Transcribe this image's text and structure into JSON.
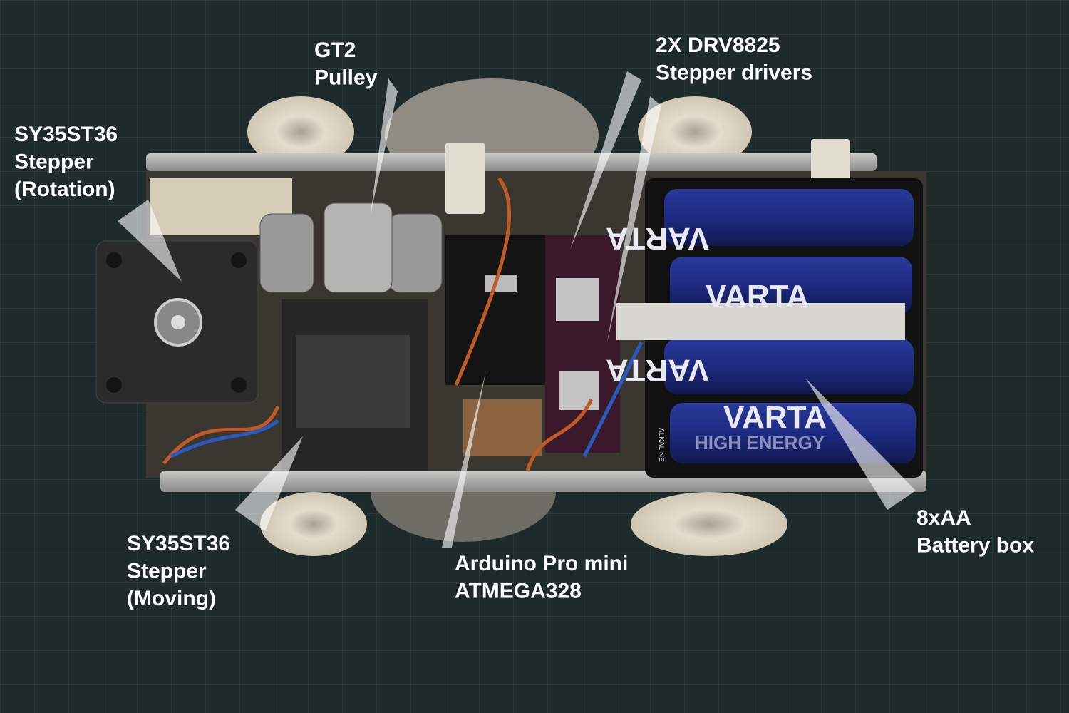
{
  "labels": [
    {
      "lines": [
        "GT2",
        "Pulley"
      ]
    },
    {
      "lines": [
        "2X DRV8825",
        "Stepper drivers"
      ]
    },
    {
      "lines": [
        "SY35ST36",
        "Stepper",
        "(Rotation)"
      ]
    },
    {
      "lines": [
        "SY35ST36",
        "Stepper",
        "(Moving)"
      ]
    },
    {
      "lines": [
        "Arduino Pro mini",
        "ATMEGA328"
      ]
    },
    {
      "lines": [
        "8xAA",
        "Battery box"
      ]
    }
  ],
  "battery_text": {
    "brand": "VARTA",
    "line": "HIGH ENERGY",
    "kind": "ALKALINE"
  }
}
